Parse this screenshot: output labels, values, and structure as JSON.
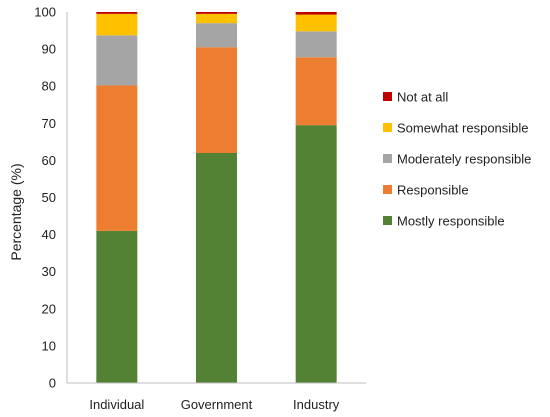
{
  "chart_data": {
    "type": "bar",
    "stacked": true,
    "categories": [
      "Individual",
      "Government",
      "Industry"
    ],
    "ylabel": "Percentage (%)",
    "xlabel": "",
    "ylim": [
      0,
      100
    ],
    "yticks": [
      0,
      10,
      20,
      30,
      40,
      50,
      60,
      70,
      80,
      90,
      100
    ],
    "grid": false,
    "legend_position": "right",
    "series": [
      {
        "name": "Mostly responsible",
        "color": "#548235",
        "values": [
          41,
          62,
          69.5
        ]
      },
      {
        "name": "Responsible",
        "color": "#ED7D31",
        "values": [
          39.2,
          28.5,
          18.3
        ]
      },
      {
        "name": "Moderately responsible",
        "color": "#A5A5A5",
        "values": [
          13.5,
          6.5,
          7
        ]
      },
      {
        "name": "Somewhat responsible",
        "color": "#FFC000",
        "values": [
          5.8,
          2.5,
          4.5
        ]
      },
      {
        "name": "Not at all",
        "color": "#C00000",
        "values": [
          0.5,
          0.5,
          0.7
        ]
      }
    ]
  }
}
